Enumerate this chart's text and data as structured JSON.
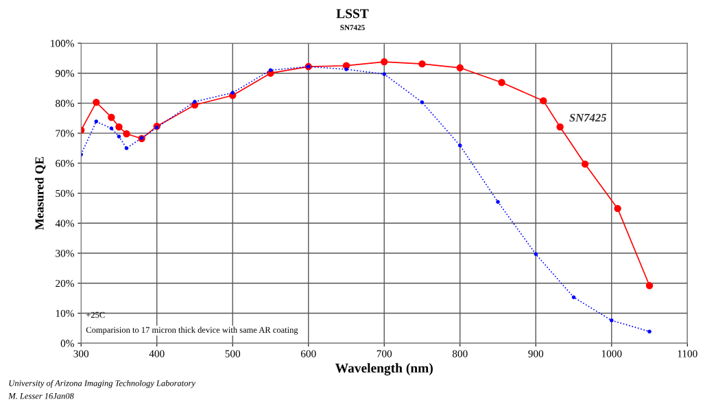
{
  "chart_data": {
    "type": "line",
    "title": "LSST",
    "subtitle": "SN7425",
    "xlabel": "Wavelength (nm)",
    "ylabel": "Measured QE",
    "series": [
      {
        "name": "SN7425",
        "color": "#ff0000",
        "line_style": "solid",
        "marker": "circle",
        "x": [
          300,
          320,
          340,
          350,
          360,
          380,
          400,
          450,
          500,
          550,
          600,
          650,
          700,
          750,
          800,
          855,
          910,
          932,
          965,
          1008,
          1050
        ],
        "values": [
          71,
          80.3,
          75.3,
          72.1,
          69.8,
          68.2,
          72.3,
          79.4,
          82.6,
          90,
          92.2,
          92.5,
          93.8,
          93.1,
          91.8,
          86.9,
          80.8,
          72.1,
          59.7,
          44.9,
          19.2
        ]
      },
      {
        "color": "#0000ff",
        "line_style": "dotted",
        "marker": "circle",
        "x": [
          300,
          320,
          340,
          350,
          360,
          380,
          400,
          450,
          500,
          550,
          600,
          650,
          700,
          750,
          800,
          850,
          900,
          950,
          1000,
          1050
        ],
        "values": [
          62.9,
          73.9,
          71.6,
          68.9,
          65,
          68.4,
          71.9,
          80.5,
          83.5,
          91,
          92.2,
          91.3,
          89.7,
          80.3,
          65.9,
          47.1,
          29.7,
          15.3,
          7.6,
          3.9
        ]
      }
    ],
    "xlim": [
      300,
      1100
    ],
    "xticks": [
      300,
      400,
      500,
      600,
      700,
      800,
      900,
      1000,
      1100
    ],
    "ylim": [
      0,
      100
    ],
    "yticks": [
      {
        "value": 0,
        "label": "0%"
      },
      {
        "value": 10,
        "label": "10%"
      },
      {
        "value": 20,
        "label": "20%"
      },
      {
        "value": 30,
        "label": "30%"
      },
      {
        "value": 40,
        "label": "40%"
      },
      {
        "value": 50,
        "label": "50%"
      },
      {
        "value": 60,
        "label": "60%"
      },
      {
        "value": 70,
        "label": "70%"
      },
      {
        "value": 80,
        "label": "80%"
      },
      {
        "value": 90,
        "label": "90%"
      },
      {
        "value": 100,
        "label": "100%"
      }
    ],
    "grid": true,
    "legend": false,
    "annotations": [
      "+25C",
      "Comparision to 17 micron thick device with same AR coating",
      "University of Arizona Imaging Technology Laboratory",
      "M. Lesser 16Jan08"
    ]
  }
}
